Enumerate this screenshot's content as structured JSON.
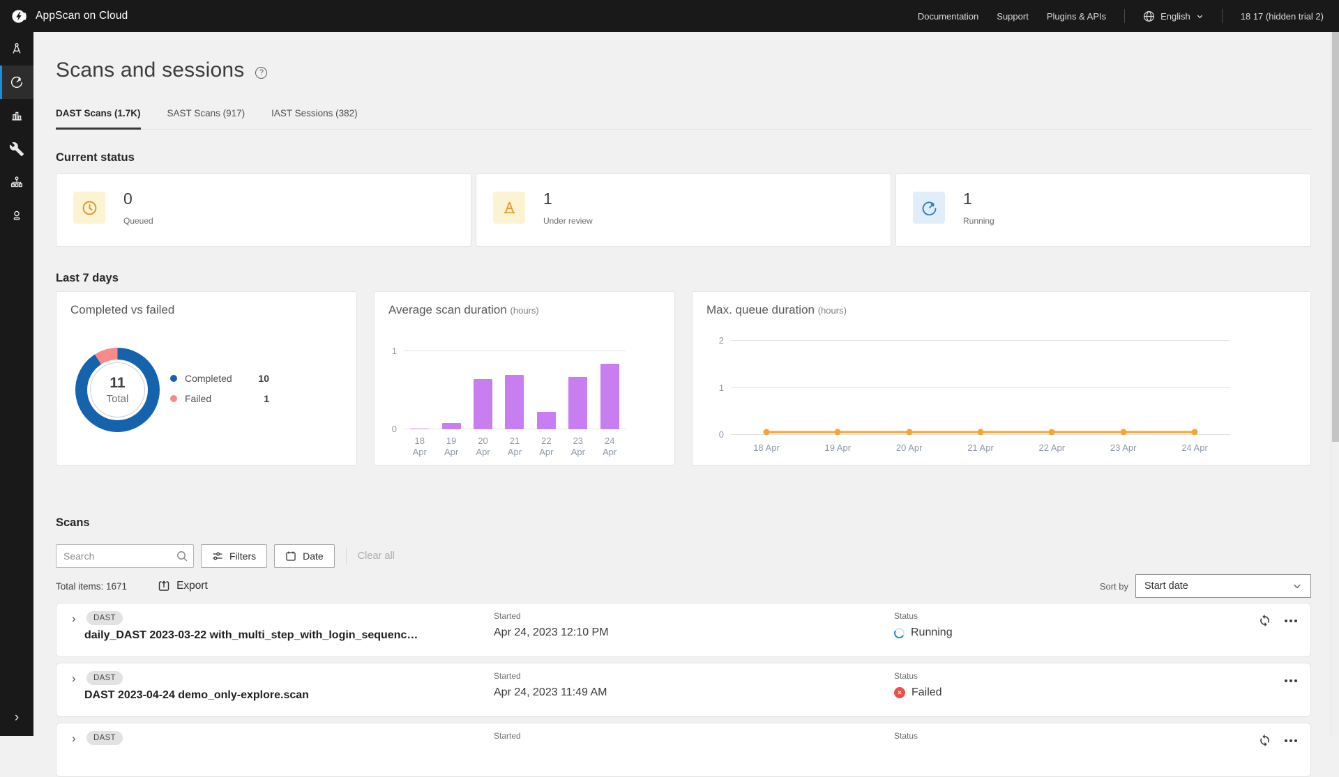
{
  "topbar": {
    "brand": "AppScan on Cloud",
    "links": [
      "Documentation",
      "Support",
      "Plugins & APIs"
    ],
    "language": "English",
    "account": "18 17 (hidden trial 2)"
  },
  "sidebar": {
    "items": [
      {
        "icon": "compass-icon",
        "active": false
      },
      {
        "icon": "gauge-icon",
        "active": true
      },
      {
        "icon": "bar-chart-icon",
        "active": false
      },
      {
        "icon": "wrench-icon",
        "active": false
      },
      {
        "icon": "org-chart-icon",
        "active": false
      },
      {
        "icon": "user-icon",
        "active": false
      }
    ],
    "expand_icon": "chevron-right-icon"
  },
  "page": {
    "title": "Scans and sessions",
    "tabs": [
      {
        "label": "DAST Scans (1.7K)",
        "active": true
      },
      {
        "label": "SAST Scans (917)",
        "active": false
      },
      {
        "label": "IAST Sessions (382)",
        "active": false
      }
    ],
    "sections": {
      "current_status": "Current status",
      "last7": "Last 7 days",
      "scans": "Scans"
    }
  },
  "current_status_cards": [
    {
      "value": "0",
      "label": "Queued",
      "icon": "clock-icon"
    },
    {
      "value": "1",
      "label": "Under review",
      "icon": "traffic-cone-icon"
    },
    {
      "value": "1",
      "label": "Running",
      "icon": "gauge-icon"
    }
  ],
  "chart_data": [
    {
      "type": "pie",
      "title": "Completed vs failed",
      "center_value": "11",
      "center_label": "Total",
      "series": [
        {
          "name": "Completed",
          "value": 10,
          "color": "#1563ac"
        },
        {
          "name": "Failed",
          "value": 1,
          "color": "#f98a8a"
        }
      ],
      "legend_position": "right"
    },
    {
      "type": "bar",
      "title": "Average scan duration",
      "unit": "(hours)",
      "categories": [
        "18 Apr",
        "19 Apr",
        "20 Apr",
        "21 Apr",
        "22 Apr",
        "23 Apr",
        "24 Apr"
      ],
      "values": [
        0.01,
        0.08,
        0.64,
        0.7,
        0.22,
        0.67,
        0.84
      ],
      "ylim": [
        0,
        1
      ],
      "yticks": [
        0,
        1
      ],
      "color": "#c87ef0",
      "grid": true
    },
    {
      "type": "line",
      "title": "Max. queue duration",
      "unit": "(hours)",
      "categories": [
        "18 Apr",
        "19 Apr",
        "20 Apr",
        "21 Apr",
        "22 Apr",
        "23 Apr",
        "24 Apr"
      ],
      "values": [
        0.06,
        0.06,
        0.06,
        0.06,
        0.06,
        0.06,
        0.06
      ],
      "ylim": [
        0,
        2
      ],
      "yticks": [
        0,
        1,
        2
      ],
      "color": "#f7a433",
      "grid": true
    }
  ],
  "scans": {
    "search_placeholder": "Search",
    "filters_label": "Filters",
    "date_label": "Date",
    "clear_all_label": "Clear all",
    "total_items": "Total items: 1671",
    "export_label": "Export",
    "sort_by_label": "Sort by",
    "sort_value": "Start date",
    "rows": [
      {
        "badge": "DAST",
        "name": "daily_DAST 2023-03-22 with_multi_step_with_login_sequenc…",
        "started_label": "Started",
        "started": "Apr 24, 2023 12:10 PM",
        "status_label": "Status",
        "status": "Running",
        "status_kind": "running",
        "refresh": true
      },
      {
        "badge": "DAST",
        "name": "DAST 2023-04-24 demo_only-explore.scan",
        "started_label": "Started",
        "started": "Apr 24, 2023 11:49 AM",
        "status_label": "Status",
        "status": "Failed",
        "status_kind": "failed",
        "refresh": false
      },
      {
        "badge": "DAST",
        "name": "",
        "started_label": "Started",
        "started": "",
        "status_label": "Status",
        "status": "",
        "status_kind": "none",
        "refresh": true
      }
    ]
  },
  "colors": {
    "running": "#2086c8",
    "failed": "#e8524c",
    "sidebar_active": "#1a8fdd"
  }
}
